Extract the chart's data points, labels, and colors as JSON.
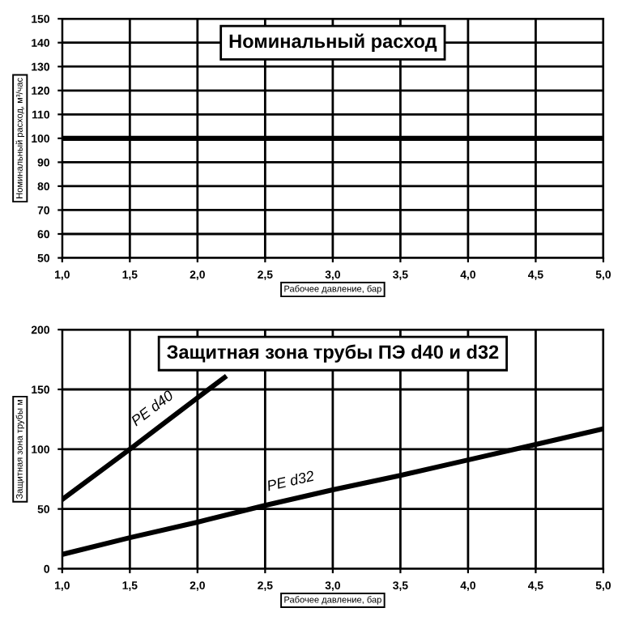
{
  "chart_data": [
    {
      "type": "line",
      "title": "Номинальный расход",
      "xlabel": "Рабочее давление, бар",
      "ylabel": "Номинальный расход, м³/час",
      "x": [
        1.0,
        5.0
      ],
      "series": [
        {
          "color": "#000000",
          "values": [
            100,
            100
          ]
        }
      ],
      "xlim": [
        1.0,
        5.0
      ],
      "ylim": [
        50,
        150
      ],
      "xticks": [
        {
          "value": 1.0,
          "label": "1,0"
        },
        {
          "value": 1.5,
          "label": "1,5"
        },
        {
          "value": 2.0,
          "label": "2,0"
        },
        {
          "value": 2.5,
          "label": "2,5"
        },
        {
          "value": 3.0,
          "label": "3,0"
        },
        {
          "value": 3.5,
          "label": "3,5"
        },
        {
          "value": 4.0,
          "label": "4,0"
        },
        {
          "value": 4.5,
          "label": "4,5"
        },
        {
          "value": 5.0,
          "label": "5,0"
        }
      ],
      "yticks": [
        50,
        60,
        70,
        80,
        90,
        100,
        110,
        120,
        130,
        140,
        150
      ],
      "grid": true,
      "legend": false
    },
    {
      "type": "line",
      "title": "Защитная зона трубы ПЭ d40 и d32",
      "xlabel": "Рабочее давление, бар",
      "ylabel": "Защитная зона трубы м",
      "series": [
        {
          "name": "PE d40",
          "color": "#000000",
          "x": [
            1.0,
            1.5,
            2.0,
            2.2
          ],
          "values": [
            58,
            100,
            143,
            160
          ]
        },
        {
          "name": "PE d32",
          "color": "#000000",
          "x": [
            1.0,
            1.5,
            2.0,
            2.5,
            3.0,
            3.5,
            4.0,
            4.5,
            5.0
          ],
          "values": [
            12,
            26,
            39,
            53,
            66,
            78,
            91,
            104,
            117
          ]
        }
      ],
      "xlim": [
        1.0,
        5.0
      ],
      "ylim": [
        0,
        200
      ],
      "xticks": [
        {
          "value": 1.0,
          "label": "1,0"
        },
        {
          "value": 1.5,
          "label": "1,5"
        },
        {
          "value": 2.0,
          "label": "2,0"
        },
        {
          "value": 2.5,
          "label": "2,5"
        },
        {
          "value": 3.0,
          "label": "3,0"
        },
        {
          "value": 3.5,
          "label": "3,5"
        },
        {
          "value": 4.0,
          "label": "4,0"
        },
        {
          "value": 4.5,
          "label": "4,5"
        },
        {
          "value": 5.0,
          "label": "5,0"
        }
      ],
      "yticks": [
        0,
        50,
        100,
        150,
        200
      ],
      "grid": true,
      "legend": false
    }
  ]
}
